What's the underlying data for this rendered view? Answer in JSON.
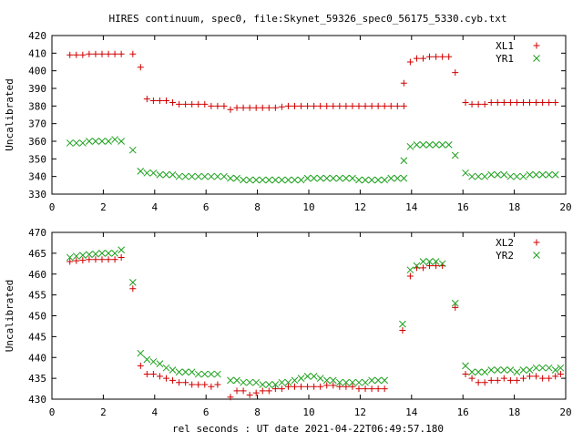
{
  "title": "HIRES continuum, spec0, file:Skynet_59326_spec0_56175_5330.cyb.txt",
  "xlabel": "rel seconds : UT date 2021-04-22T06:49:57.180",
  "colors": {
    "red": "#d00000",
    "green": "#1aa01a",
    "axis": "#000000"
  },
  "chart_data": [
    {
      "type": "scatter",
      "ylabel": "Uncalibrated",
      "xlim": [
        0,
        20
      ],
      "ylim": [
        330,
        420
      ],
      "xticks": [
        0,
        2,
        4,
        6,
        8,
        10,
        12,
        14,
        16,
        18,
        20
      ],
      "yticks": [
        330,
        340,
        350,
        360,
        370,
        380,
        390,
        400,
        410,
        420
      ],
      "legend_position": "top-right",
      "x": [
        0.7,
        0.95,
        1.2,
        1.45,
        1.7,
        1.95,
        2.2,
        2.45,
        2.7,
        2.95,
        3.2,
        3.45,
        3.7,
        3.95,
        4.2,
        4.45,
        4.7,
        4.95,
        5.2,
        5.45,
        5.7,
        5.95,
        6.2,
        6.45,
        6.7,
        6.95,
        7.2,
        7.45,
        7.7,
        7.95,
        8.2,
        8.45,
        8.7,
        8.95,
        9.2,
        9.45,
        9.7,
        9.95,
        10.2,
        10.45,
        10.7,
        10.95,
        11.2,
        11.45,
        11.7,
        11.95,
        12.2,
        12.45,
        12.7,
        12.95,
        13.2,
        13.45,
        13.7,
        13.95,
        14.2,
        14.45,
        14.7,
        14.95,
        15.2,
        15.45,
        15.7,
        15.95,
        16.2,
        16.45,
        16.7,
        16.95,
        17.2,
        17.45,
        17.7,
        17.95,
        18.2,
        18.45,
        18.7,
        18.95,
        19.2,
        19.45
      ],
      "series": [
        {
          "name": "XL1",
          "marker": "plus",
          "color": "#d00000",
          "values": [
            409,
            409,
            409,
            409.5,
            409.5,
            409.5,
            409.5,
            409.5,
            409.5,
            409.5,
            402,
            384,
            383,
            383,
            383,
            382,
            381,
            381,
            381,
            381,
            381,
            380,
            380,
            380,
            378,
            379,
            379,
            379,
            379,
            379,
            379,
            379,
            379.5,
            380,
            380,
            380,
            380,
            380,
            380,
            380,
            380,
            380,
            380,
            380,
            380,
            380,
            380,
            380,
            380,
            380,
            380,
            380,
            393,
            405,
            407,
            407,
            408,
            408,
            408,
            408,
            399,
            382,
            381,
            381,
            381,
            382,
            382,
            382,
            382,
            382,
            382,
            382,
            382,
            382,
            382,
            382
          ],
          "xs": [
            0.7,
            0.95,
            1.2,
            1.45,
            1.7,
            1.95,
            2.2,
            2.45,
            2.7,
            3.15,
            3.45,
            3.7,
            3.95,
            4.2,
            4.45,
            4.7,
            4.95,
            5.2,
            5.45,
            5.7,
            5.95,
            6.2,
            6.45,
            6.7,
            6.95,
            7.2,
            7.45,
            7.7,
            7.95,
            8.2,
            8.45,
            8.7,
            8.95,
            9.2,
            9.45,
            9.7,
            9.95,
            10.2,
            10.45,
            10.7,
            10.95,
            11.2,
            11.45,
            11.7,
            11.95,
            12.2,
            12.45,
            12.7,
            12.95,
            13.2,
            13.45,
            13.7,
            13.7,
            13.95,
            14.2,
            14.45,
            14.7,
            14.95,
            15.2,
            15.45,
            15.7,
            16.1,
            16.35,
            16.6,
            16.85,
            17.1,
            17.35,
            17.6,
            17.85,
            18.1,
            18.35,
            18.6,
            18.85,
            19.1,
            19.35,
            19.6
          ]
        },
        {
          "name": "YR1",
          "marker": "cross",
          "color": "#1aa01a",
          "values": [
            359,
            359,
            359,
            360,
            360,
            360,
            360,
            361,
            360,
            355,
            343,
            342,
            342,
            341,
            341,
            341,
            340,
            340,
            340,
            340,
            340,
            340,
            340,
            340,
            339,
            339,
            338,
            338,
            338,
            338,
            338,
            338,
            338,
            338,
            338,
            338,
            339,
            339,
            339,
            339,
            339,
            339,
            339,
            339,
            338,
            338,
            338,
            338,
            338,
            339,
            339,
            339,
            349,
            357,
            358,
            358,
            358,
            358,
            358,
            358,
            352,
            342,
            340,
            340,
            340,
            341,
            341,
            341,
            340,
            340,
            340,
            341,
            341,
            341,
            341,
            341
          ],
          "xs": [
            0.7,
            0.95,
            1.2,
            1.45,
            1.7,
            1.95,
            2.2,
            2.45,
            2.7,
            3.15,
            3.45,
            3.7,
            3.95,
            4.2,
            4.45,
            4.7,
            4.95,
            5.2,
            5.45,
            5.7,
            5.95,
            6.2,
            6.45,
            6.7,
            6.95,
            7.2,
            7.45,
            7.7,
            7.95,
            8.2,
            8.45,
            8.7,
            8.95,
            9.2,
            9.45,
            9.7,
            9.95,
            10.2,
            10.45,
            10.7,
            10.95,
            11.2,
            11.45,
            11.7,
            11.95,
            12.2,
            12.45,
            12.7,
            12.95,
            13.2,
            13.45,
            13.7,
            13.7,
            13.95,
            14.2,
            14.45,
            14.7,
            14.95,
            15.2,
            15.45,
            15.7,
            16.1,
            16.35,
            16.6,
            16.85,
            17.1,
            17.35,
            17.6,
            17.85,
            18.1,
            18.35,
            18.6,
            18.85,
            19.1,
            19.35,
            19.6
          ]
        }
      ]
    },
    {
      "type": "scatter",
      "ylabel": "Uncalibrated",
      "xlim": [
        0,
        20
      ],
      "ylim": [
        430,
        470
      ],
      "xticks": [
        0,
        2,
        4,
        6,
        8,
        10,
        12,
        14,
        16,
        18,
        20
      ],
      "yticks": [
        430,
        435,
        440,
        445,
        450,
        455,
        460,
        465,
        470
      ],
      "legend_position": "top-right",
      "series": [
        {
          "name": "XL2",
          "marker": "plus",
          "color": "#d00000",
          "values": [
            463,
            463.2,
            463.3,
            463.5,
            463.5,
            463.5,
            463.5,
            463.5,
            464,
            456.5,
            438,
            436,
            436,
            435.5,
            435,
            434.5,
            434,
            434,
            433.5,
            433.5,
            433.5,
            433,
            433.5,
            430.5,
            432,
            432,
            431,
            431.5,
            432,
            432,
            432.5,
            432.5,
            433,
            433,
            433,
            433,
            433,
            433,
            433.3,
            433.3,
            433,
            433,
            433,
            432.5,
            432.5,
            432.5,
            432.5,
            432.5,
            446.5,
            459.5,
            461.5,
            461.5,
            462,
            462,
            462,
            452,
            436,
            435,
            434,
            434,
            434.5,
            434.5,
            435,
            434.5,
            434.5,
            435,
            435.5,
            435.5,
            435,
            435,
            435.5,
            436
          ],
          "xs": [
            0.7,
            0.95,
            1.2,
            1.45,
            1.7,
            1.95,
            2.2,
            2.45,
            2.7,
            3.15,
            3.45,
            3.7,
            3.95,
            4.2,
            4.45,
            4.7,
            4.95,
            5.2,
            5.45,
            5.7,
            5.95,
            6.2,
            6.45,
            6.95,
            7.2,
            7.45,
            7.7,
            7.95,
            8.2,
            8.45,
            8.7,
            8.95,
            9.2,
            9.45,
            9.7,
            9.95,
            10.2,
            10.45,
            10.7,
            10.95,
            11.2,
            11.45,
            11.7,
            11.95,
            12.2,
            12.45,
            12.7,
            12.95,
            13.65,
            13.95,
            14.2,
            14.45,
            14.7,
            14.95,
            15.2,
            15.7,
            16.1,
            16.35,
            16.6,
            16.85,
            17.1,
            17.35,
            17.6,
            17.85,
            18.1,
            18.35,
            18.6,
            18.85,
            19.1,
            19.35,
            19.6,
            19.8
          ]
        },
        {
          "name": "YR2",
          "marker": "cross",
          "color": "#1aa01a",
          "values": [
            464,
            464.3,
            464.5,
            464.7,
            464.8,
            465,
            465,
            465,
            465.8,
            458,
            441,
            439.5,
            439,
            438.5,
            437.5,
            437,
            436.5,
            436.5,
            436.5,
            436,
            436,
            436,
            436,
            434.5,
            434.5,
            434,
            434,
            434,
            433.5,
            433.5,
            433.5,
            434,
            434,
            434.5,
            435,
            435.5,
            435.5,
            435,
            434.5,
            434.5,
            434,
            434,
            434,
            434,
            434,
            434.5,
            434.5,
            434.5,
            448,
            461,
            462,
            463,
            463,
            463,
            462.5,
            453,
            438,
            436.5,
            436.5,
            436.5,
            437,
            437,
            437,
            437,
            436.5,
            437,
            437,
            437.5,
            437.5,
            437.5,
            437,
            437.5
          ],
          "xs": [
            0.7,
            0.95,
            1.2,
            1.45,
            1.7,
            1.95,
            2.2,
            2.45,
            2.7,
            3.15,
            3.45,
            3.7,
            3.95,
            4.2,
            4.45,
            4.7,
            4.95,
            5.2,
            5.45,
            5.7,
            5.95,
            6.2,
            6.45,
            6.95,
            7.2,
            7.45,
            7.7,
            7.95,
            8.2,
            8.45,
            8.7,
            8.95,
            9.2,
            9.45,
            9.7,
            9.95,
            10.2,
            10.45,
            10.7,
            10.95,
            11.2,
            11.45,
            11.7,
            11.95,
            12.2,
            12.45,
            12.7,
            12.95,
            13.65,
            13.95,
            14.2,
            14.45,
            14.7,
            14.95,
            15.2,
            15.7,
            16.1,
            16.35,
            16.6,
            16.85,
            17.1,
            17.35,
            17.6,
            17.85,
            18.1,
            18.35,
            18.6,
            18.85,
            19.1,
            19.35,
            19.6,
            19.8
          ]
        }
      ]
    }
  ]
}
